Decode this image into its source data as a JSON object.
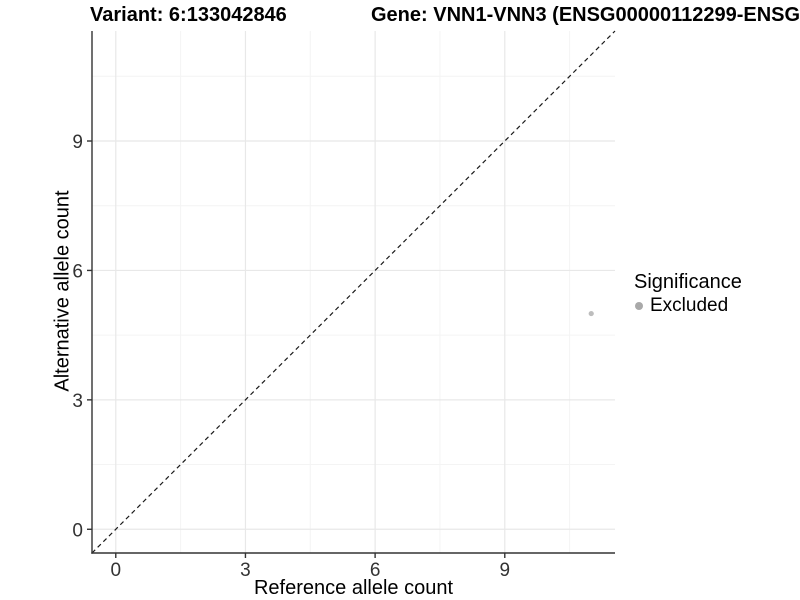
{
  "chart_data": {
    "type": "scatter",
    "title_left": "Variant: 6:133042846",
    "title_right": "Gene: VNN1-VNN3 (ENSG00000112299-ENSG",
    "xlabel": "Reference allele count",
    "ylabel": "Alternative allele count",
    "xlim": [
      -0.55,
      11.55
    ],
    "ylim": [
      -0.55,
      11.55
    ],
    "xticks": [
      0,
      3,
      6,
      9
    ],
    "yticks": [
      0,
      3,
      6,
      9
    ],
    "xminor": [
      1.5,
      4.5,
      7.5,
      10.5
    ],
    "yminor": [
      1.5,
      4.5,
      7.5,
      10.5
    ],
    "grid": "major+minor",
    "series": [
      {
        "name": "Excluded",
        "color": "#bdbdbd",
        "point_radius": 2.6,
        "points": [
          {
            "x": 11,
            "y": 5
          }
        ]
      }
    ],
    "reference_line": {
      "kind": "y=x",
      "style": "dashed",
      "color": "#1a1a1a"
    },
    "legend": {
      "title": "Significance",
      "position": "right",
      "entries": [
        {
          "label": "Excluded",
          "color": "#a9a9a9"
        }
      ]
    },
    "colors": {
      "background": "#ffffff",
      "grid_major": "#e8e8e8",
      "grid_minor": "#f4f4f4",
      "axis": "#333333",
      "tick_label": "#333333"
    }
  }
}
